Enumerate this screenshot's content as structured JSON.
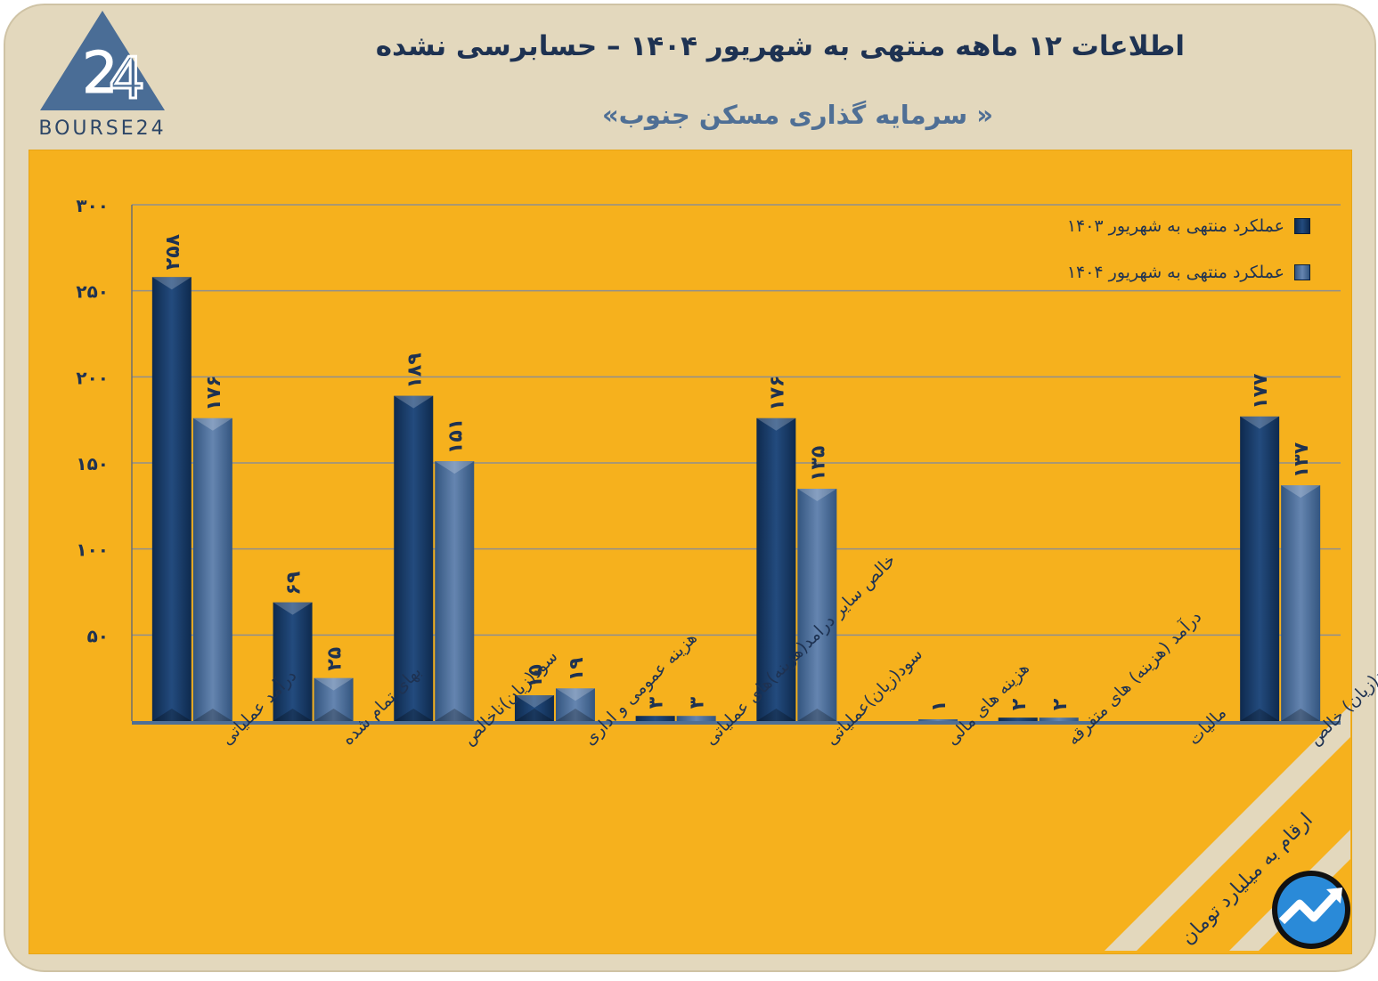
{
  "brand": {
    "logo_text": "BOURSE24",
    "colors": {
      "frame": "#e3d8bd",
      "panel": "#f6b11d",
      "dark_text": "#1e3252"
    }
  },
  "header": {
    "title": "اطلاعات ۱۲ ماهه منتهی به شهریور ۱۴۰۴ – حسابرسی نشده",
    "subtitle": "« سرمایه گذاری مسکن جنوب»"
  },
  "note": {
    "unit": "ارقام به میلیارد تومان"
  },
  "icons": {
    "logo": "bourse24-triangle-logo",
    "badge": "trend-arrow-badge-icon"
  },
  "chart_data": {
    "type": "bar",
    "title": "",
    "xlabel": "",
    "ylabel": "",
    "ylim": [
      0,
      300
    ],
    "yticks": [
      50,
      100,
      150,
      200,
      250,
      300
    ],
    "ytick_labels": [
      "۵۰",
      "۱۰۰",
      "۱۵۰",
      "۲۰۰",
      "۲۵۰",
      "۳۰۰"
    ],
    "grid": true,
    "legend_position": "top-right",
    "categories": [
      "درآمد عملیاتی",
      "بهای تمام شده",
      "سود(زیان)ناخالص",
      "هزینه عمومی و اداری",
      "خالص سایر درامد(هزینه)های عملیاتی",
      "سود(زیان)عملیاتی",
      "هزینه های مالی",
      "درآمد (هزینه) های متفرقه",
      "مالیات",
      "سود(زیان) خالص"
    ],
    "series": [
      {
        "name": "عملکرد منتهی به شهریور ۱۴۰۳",
        "color": "#1b3f6e",
        "values": [
          258,
          69,
          189,
          15,
          3,
          176,
          0,
          2,
          0,
          177
        ],
        "labels": [
          "۲۵۸",
          "۶۹",
          "۱۸۹",
          "۱۵",
          "۳",
          "۱۷۶",
          "",
          "۲",
          "",
          "۱۷۷"
        ]
      },
      {
        "name": "عملکرد منتهی به شهریور ۱۴۰۴",
        "color": "#50709a",
        "values": [
          176,
          25,
          151,
          19,
          3,
          135,
          1,
          2,
          0,
          137
        ],
        "labels": [
          "۱۷۶",
          "۲۵",
          "۱۵۱",
          "۱۹",
          "۳",
          "۱۳۵",
          "۱",
          "۲",
          "",
          "۱۳۷"
        ]
      }
    ]
  }
}
